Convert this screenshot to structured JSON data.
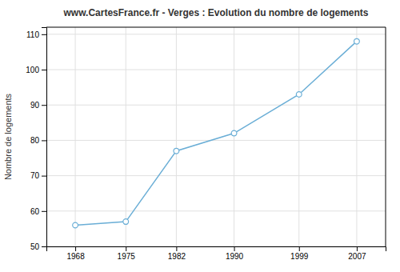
{
  "chart_data": {
    "type": "line",
    "title": "www.CartesFrance.fr - Verges : Evolution du nombre de logements",
    "ylabel": "Nombre de logements",
    "x": [
      1968,
      1975,
      1982,
      1990,
      1999,
      2007
    ],
    "values": [
      56,
      57,
      77,
      82,
      93,
      108
    ],
    "xlim": [
      1964,
      2011
    ],
    "xticks": [
      1968,
      1975,
      1982,
      1990,
      1999,
      2007
    ],
    "ylim": [
      50,
      112
    ],
    "yticks": [
      50,
      60,
      70,
      80,
      90,
      100,
      110
    ],
    "color": "#6aaed6",
    "marker": "circle",
    "grid": true
  }
}
